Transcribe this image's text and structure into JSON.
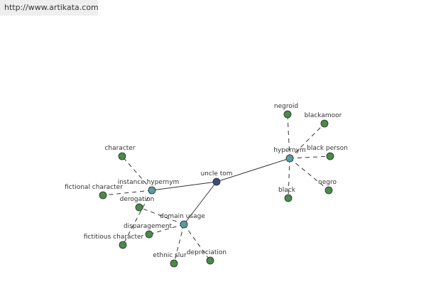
{
  "header": {
    "url": "http://www.artikata.com"
  },
  "graph": {
    "colors": {
      "root": "#3b4d7e",
      "relation": "#5b9b9d",
      "leaf": "#4a8a48",
      "edge": "#333333"
    },
    "nodes": [
      {
        "id": "uncle-tom",
        "label": "uncle tom",
        "kind": "root"
      },
      {
        "id": "hypernym",
        "label": "hypernym",
        "kind": "relation"
      },
      {
        "id": "instance-hypernym",
        "label": "instance hypernym",
        "kind": "relation"
      },
      {
        "id": "domain-usage",
        "label": "domain usage",
        "kind": "relation"
      },
      {
        "id": "negroid",
        "label": "negroid",
        "kind": "leaf"
      },
      {
        "id": "blackamoor",
        "label": "blackamoor",
        "kind": "leaf"
      },
      {
        "id": "black-person",
        "label": "black person",
        "kind": "leaf"
      },
      {
        "id": "negro",
        "label": "negro",
        "kind": "leaf"
      },
      {
        "id": "black",
        "label": "black",
        "kind": "leaf"
      },
      {
        "id": "character",
        "label": "character",
        "kind": "leaf"
      },
      {
        "id": "fictional-character",
        "label": "fictional character",
        "kind": "leaf"
      },
      {
        "id": "derogation",
        "label": "derogation",
        "kind": "leaf"
      },
      {
        "id": "disparagement",
        "label": "disparagement",
        "kind": "leaf"
      },
      {
        "id": "fictitious-character",
        "label": "fictitious character",
        "kind": "leaf"
      },
      {
        "id": "ethnic-slur",
        "label": "ethnic slur",
        "kind": "leaf"
      },
      {
        "id": "depreciation",
        "label": "depreciation",
        "kind": "leaf"
      }
    ],
    "edges": [
      {
        "from": "uncle-tom",
        "to": "hypernym",
        "style": "solid"
      },
      {
        "from": "uncle-tom",
        "to": "instance-hypernym",
        "style": "solid"
      },
      {
        "from": "uncle-tom",
        "to": "domain-usage",
        "style": "solid"
      },
      {
        "from": "hypernym",
        "to": "negroid",
        "style": "dashed"
      },
      {
        "from": "hypernym",
        "to": "blackamoor",
        "style": "dashed"
      },
      {
        "from": "hypernym",
        "to": "black-person",
        "style": "dashed"
      },
      {
        "from": "hypernym",
        "to": "negro",
        "style": "dashed"
      },
      {
        "from": "hypernym",
        "to": "black",
        "style": "dashed"
      },
      {
        "from": "instance-hypernym",
        "to": "character",
        "style": "dashed"
      },
      {
        "from": "instance-hypernym",
        "to": "fictional-character",
        "style": "dashed"
      },
      {
        "from": "instance-hypernym",
        "to": "fictitious-character",
        "style": "dashed"
      },
      {
        "from": "domain-usage",
        "to": "derogation",
        "style": "dashed"
      },
      {
        "from": "domain-usage",
        "to": "disparagement",
        "style": "dashed"
      },
      {
        "from": "domain-usage",
        "to": "ethnic-slur",
        "style": "dashed"
      },
      {
        "from": "domain-usage",
        "to": "depreciation",
        "style": "dashed"
      }
    ]
  }
}
